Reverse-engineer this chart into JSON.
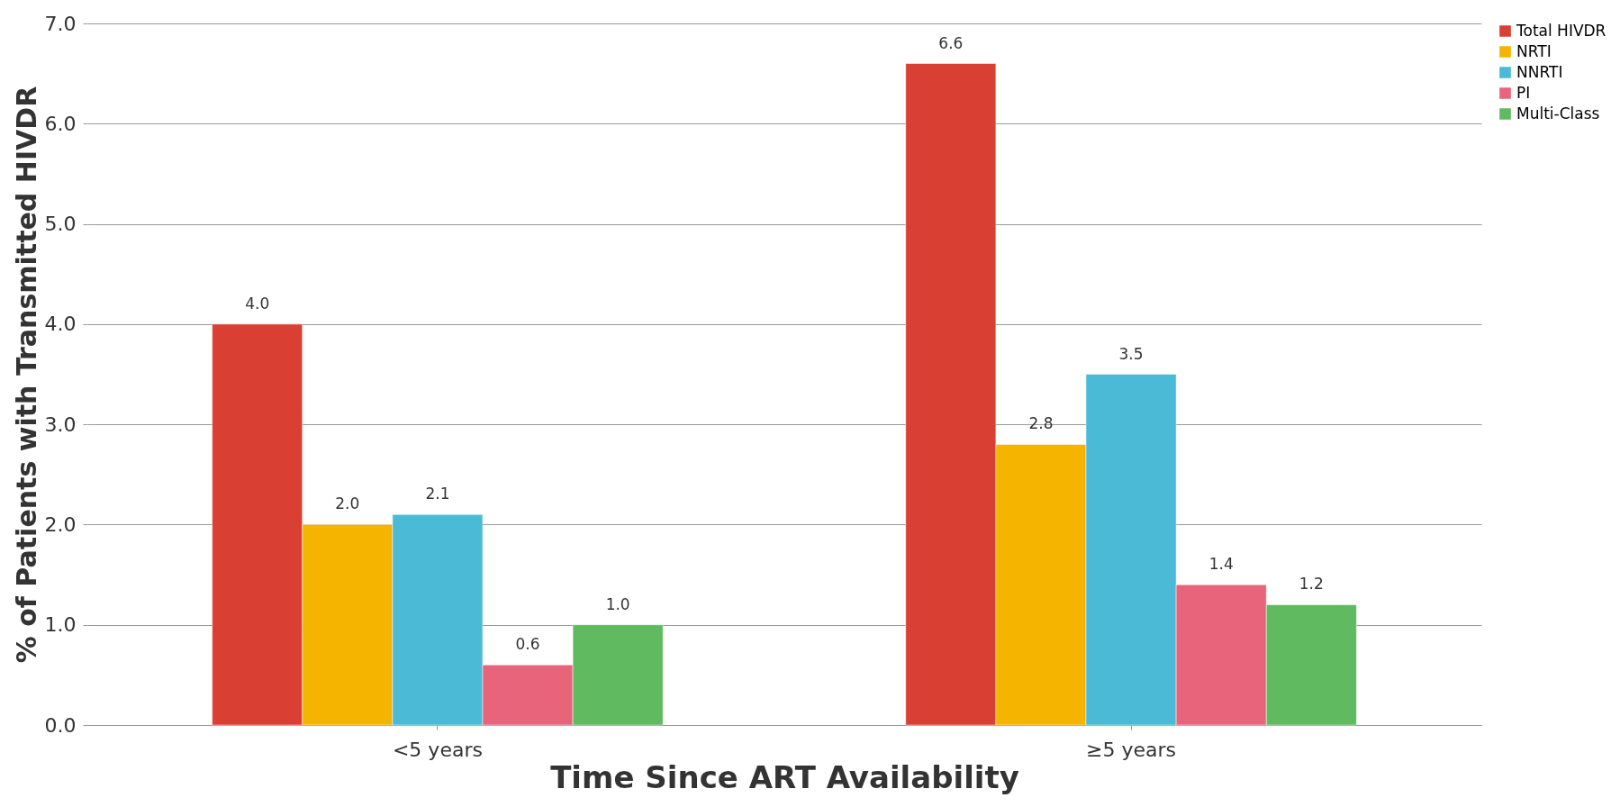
{
  "chart_data": {
    "type": "bar",
    "xlabel": "Time Since ART Availability",
    "ylabel": "% of Patients with Transmitted HIVDR",
    "categories": [
      "<5 years",
      "≥5 years"
    ],
    "series": [
      {
        "name": "Total HIVDR",
        "color": "#d93f33",
        "values": [
          4.0,
          6.6
        ],
        "value_labels": [
          "4.0",
          "6.6"
        ]
      },
      {
        "name": "NRTI",
        "color": "#f5b400",
        "values": [
          2.0,
          2.8
        ],
        "value_labels": [
          "2.0",
          "2.8"
        ]
      },
      {
        "name": "NNRTI",
        "color": "#4bbad6",
        "values": [
          2.1,
          3.5
        ],
        "value_labels": [
          "2.1",
          "3.5"
        ]
      },
      {
        "name": "PI",
        "color": "#e8647a",
        "values": [
          0.6,
          1.4
        ],
        "value_labels": [
          "0.6",
          "1.4"
        ]
      },
      {
        "name": "Multi-Class",
        "color": "#5fba60",
        "values": [
          1.0,
          1.2
        ],
        "value_labels": [
          "1.0",
          "1.2"
        ]
      }
    ],
    "ylim": [
      0,
      7
    ],
    "yticks": [
      {
        "value": 0,
        "label": "0.0"
      },
      {
        "value": 1,
        "label": "1.0"
      },
      {
        "value": 2,
        "label": "2.0"
      },
      {
        "value": 3,
        "label": "3.0"
      },
      {
        "value": 4,
        "label": "4.0"
      },
      {
        "value": 5,
        "label": "5.0"
      },
      {
        "value": 6,
        "label": "6.0"
      },
      {
        "value": 7,
        "label": "7.0"
      }
    ],
    "grid": "y",
    "legend": "right"
  }
}
